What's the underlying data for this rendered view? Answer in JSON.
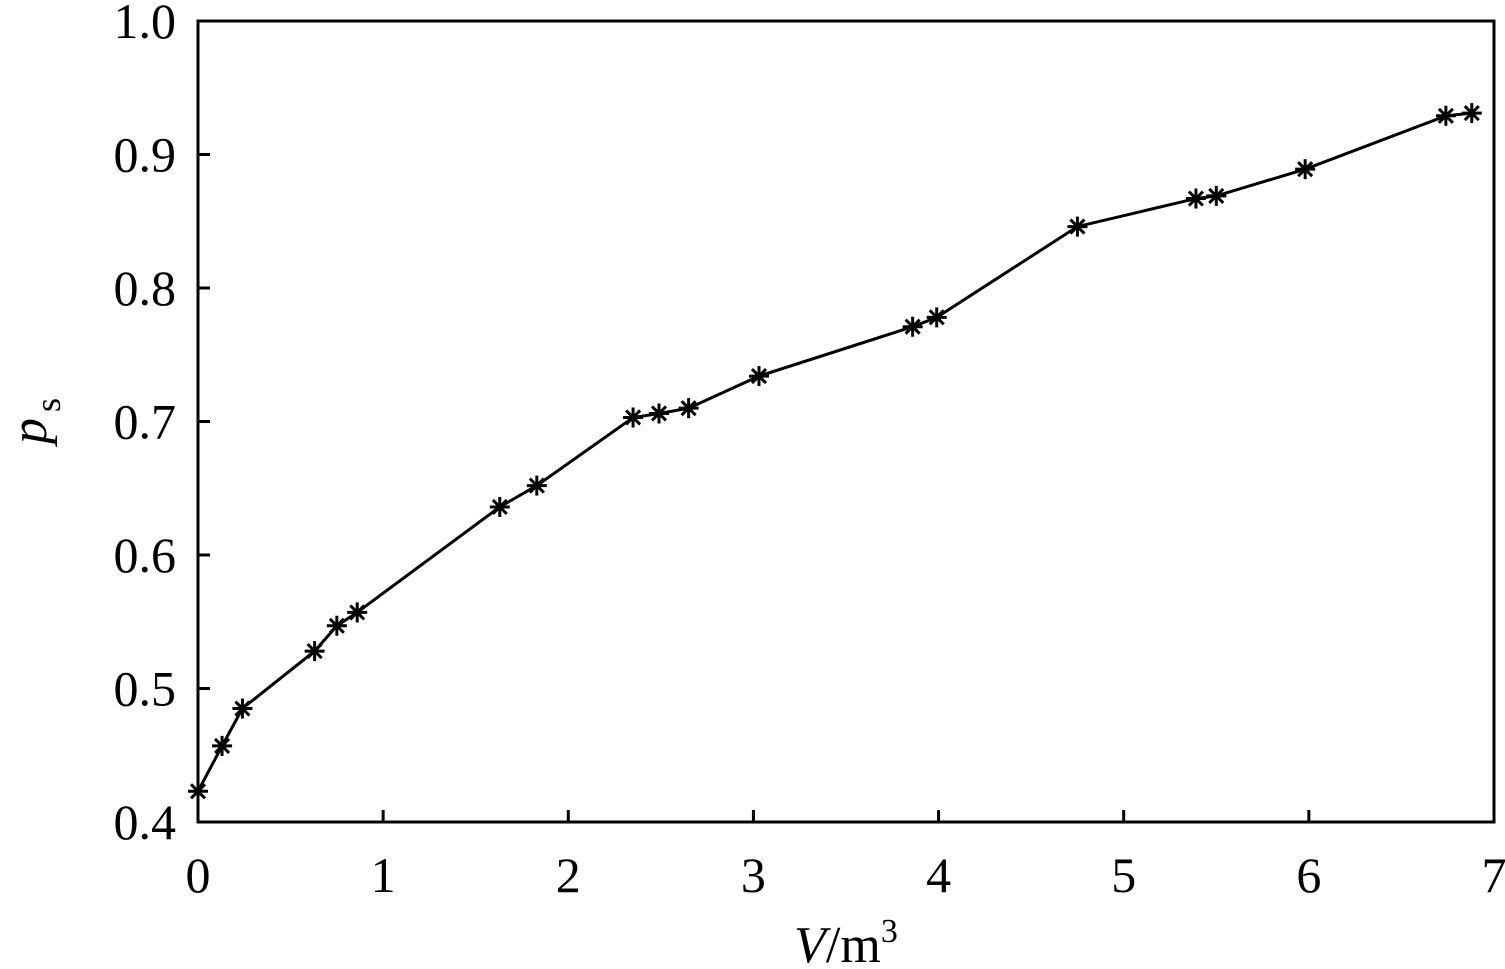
{
  "chart_data": {
    "type": "line",
    "xlabel_italic": "V",
    "xlabel_rest": "/m",
    "xlabel_sup": "3",
    "ylabel_italic": "p",
    "ylabel_sub": "s",
    "xlim": [
      0,
      7
    ],
    "ylim": [
      0.4,
      1.0
    ],
    "x_ticks": [
      0,
      1,
      2,
      3,
      4,
      5,
      6,
      7
    ],
    "x_tick_labels": [
      "0",
      "1",
      "2",
      "3",
      "4",
      "5",
      "6",
      "7"
    ],
    "y_ticks": [
      0.4,
      0.5,
      0.6,
      0.7,
      0.8,
      0.9,
      1.0
    ],
    "y_tick_labels": [
      "0.4",
      "0.5",
      "0.6",
      "0.7",
      "0.8",
      "0.9",
      "1.0"
    ],
    "grid": false,
    "marker": "asterisk",
    "line_color": "#000000",
    "series": [
      {
        "x": [
          0.0,
          0.13,
          0.24,
          0.63,
          0.75,
          0.86,
          1.63,
          1.83,
          2.35,
          2.49,
          2.65,
          3.03,
          3.86,
          3.99,
          4.75,
          5.39,
          5.5,
          5.98,
          6.74,
          6.88
        ],
        "y": [
          0.423,
          0.457,
          0.485,
          0.528,
          0.547,
          0.557,
          0.636,
          0.652,
          0.703,
          0.706,
          0.71,
          0.734,
          0.771,
          0.778,
          0.846,
          0.867,
          0.869,
          0.889,
          0.929,
          0.931
        ]
      }
    ]
  }
}
